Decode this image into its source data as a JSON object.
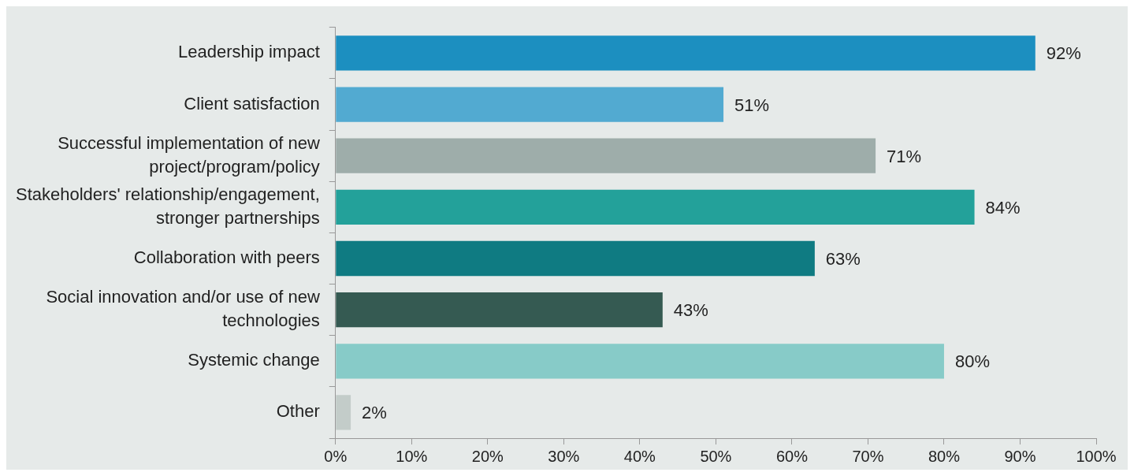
{
  "chart_data": {
    "type": "bar",
    "orientation": "horizontal",
    "categories": [
      "Leadership impact",
      "Client satisfaction",
      "Successful implementation of new project/program/policy",
      "Stakeholders' relationship/engagement, stronger partnerships",
      "Collaboration with peers",
      "Social innovation and/or use of new technologies",
      "Systemic change",
      "Other"
    ],
    "values": [
      92,
      51,
      71,
      84,
      63,
      43,
      80,
      2
    ],
    "colors": [
      "#1c8fc0",
      "#52aad1",
      "#9eadaa",
      "#23a19a",
      "#0f7b82",
      "#355a52",
      "#87cbc8",
      "#c3ccc9"
    ],
    "value_labels": [
      "92%",
      "51%",
      "71%",
      "84%",
      "63%",
      "43%",
      "80%",
      "2%"
    ],
    "xlim": [
      0,
      100
    ],
    "xticks": [
      {
        "value": 0,
        "label": "0%"
      },
      {
        "value": 10,
        "label": "10%"
      },
      {
        "value": 20,
        "label": "20%"
      },
      {
        "value": 30,
        "label": "30%"
      },
      {
        "value": 40,
        "label": "40%"
      },
      {
        "value": 50,
        "label": "50%"
      },
      {
        "value": 60,
        "label": "60%"
      },
      {
        "value": 70,
        "label": "70%"
      },
      {
        "value": 80,
        "label": "80%"
      },
      {
        "value": 90,
        "label": "90%"
      },
      {
        "value": 100,
        "label": "100%"
      }
    ],
    "grid": false,
    "legend": false
  }
}
